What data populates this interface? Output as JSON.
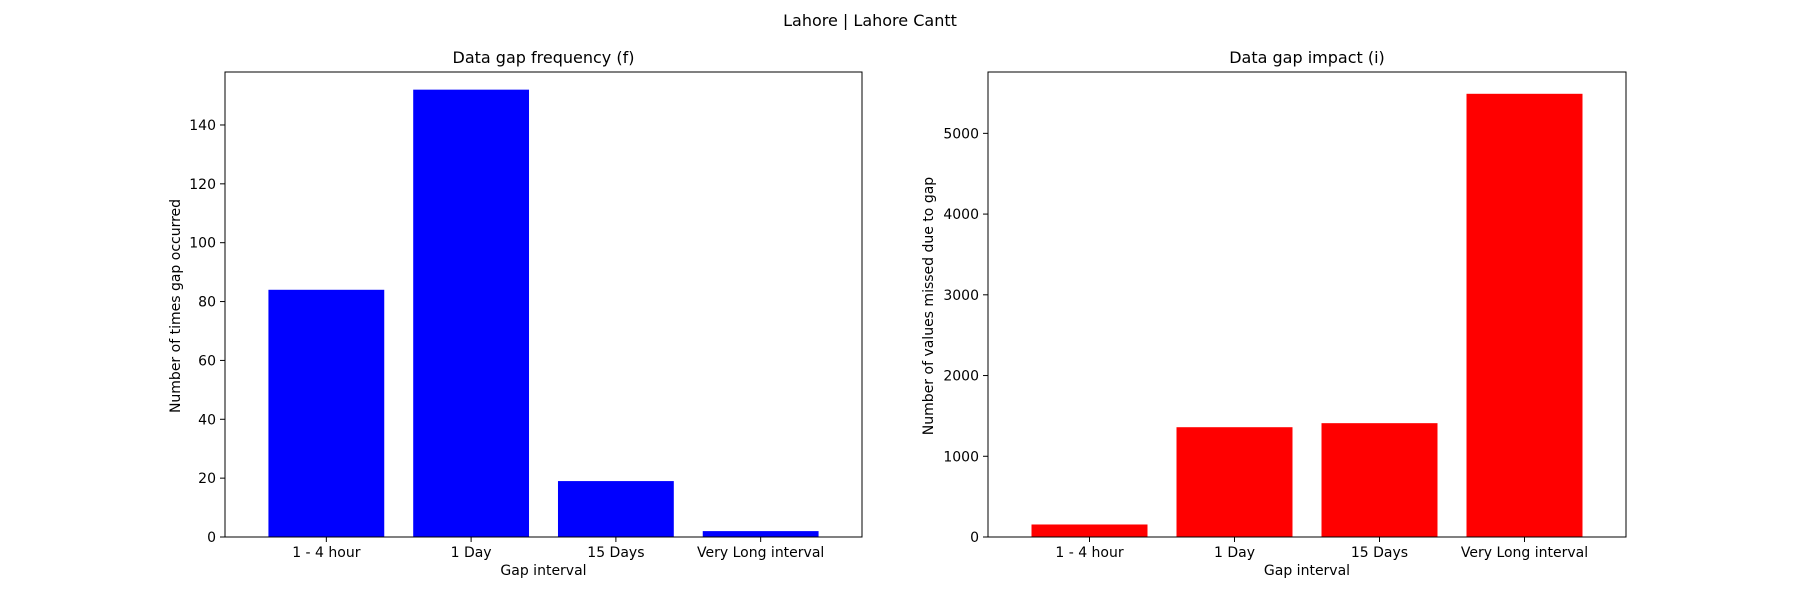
{
  "figure": {
    "suptitle": "Lahore | Lahore Cantt"
  },
  "chart_data": [
    {
      "type": "bar",
      "title": "Data gap frequency (f)",
      "xlabel": "Gap interval",
      "ylabel": "Number of times gap occurred",
      "categories": [
        "1 - 4 hour",
        "1 Day",
        "15 Days",
        "Very Long interval"
      ],
      "values": [
        84,
        152,
        19,
        2
      ],
      "ylim": [
        0,
        158
      ],
      "yticks": [
        0,
        20,
        40,
        60,
        80,
        100,
        120,
        140
      ],
      "color": "#0000ff",
      "grid": false
    },
    {
      "type": "bar",
      "title": "Data gap impact (i)",
      "xlabel": "Gap interval",
      "ylabel": "Number of values missed due to gap",
      "categories": [
        "1 - 4 hour",
        "1 Day",
        "15 Days",
        "Very Long interval"
      ],
      "values": [
        155,
        1360,
        1410,
        5490
      ],
      "ylim": [
        0,
        5760
      ],
      "yticks": [
        0,
        1000,
        2000,
        3000,
        4000,
        5000
      ],
      "color": "#ff0000",
      "grid": false
    }
  ]
}
